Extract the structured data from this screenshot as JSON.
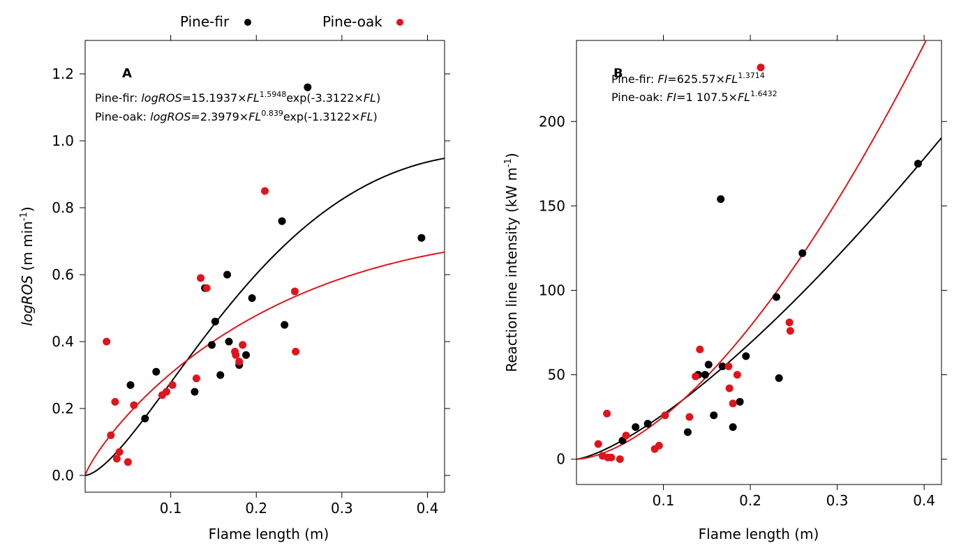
{
  "legend": {
    "items": [
      {
        "label": "Pine-fir",
        "color": "#000000"
      },
      {
        "label": "Pine-oak",
        "color": "#e0141a"
      }
    ]
  },
  "chart_data": [
    {
      "type": "scatter",
      "panel_label": "A",
      "xlabel": "Flame length (m)",
      "ylabel_italic": "logROS",
      "ylabel_rest": " (m min",
      "ylabel_sup": "-1",
      "ylabel_close": ")",
      "xlim": [
        0.0,
        0.42
      ],
      "ylim": [
        -0.05,
        1.3
      ],
      "xticks": [
        0.1,
        0.2,
        0.3,
        0.4
      ],
      "xtick_labels": [
        "0.1",
        "0.2",
        "0.3",
        "0.4"
      ],
      "yticks": [
        0.0,
        0.2,
        0.4,
        0.6,
        0.8,
        1.0,
        1.2
      ],
      "ytick_labels": [
        "0.0",
        "0.2",
        "0.4",
        "0.6",
        "0.8",
        "1.0",
        "1.2"
      ],
      "equations": [
        {
          "prefix": "Pine-fir: ",
          "var": "logROS",
          "mid": "=15.1937×",
          "fl": "FL",
          "sup": "1.5948",
          "rest": "exp(-3.3122×",
          "fl2": "FL",
          "close": ")"
        },
        {
          "prefix": "Pine-oak: ",
          "var": "logROS",
          "mid": "=2.3979×",
          "fl": "FL",
          "sup": "0.839",
          "rest": "exp(-1.3122×",
          "fl2": "FL",
          "close": ")"
        }
      ],
      "series": [
        {
          "name": "Pine-fir",
          "color": "#000000",
          "points": [
            [
              0.053,
              0.27
            ],
            [
              0.07,
              0.17
            ],
            [
              0.083,
              0.31
            ],
            [
              0.128,
              0.25
            ],
            [
              0.14,
              0.56
            ],
            [
              0.148,
              0.39
            ],
            [
              0.152,
              0.46
            ],
            [
              0.158,
              0.3
            ],
            [
              0.166,
              0.6
            ],
            [
              0.168,
              0.4
            ],
            [
              0.18,
              0.33
            ],
            [
              0.188,
              0.36
            ],
            [
              0.195,
              0.53
            ],
            [
              0.23,
              0.76
            ],
            [
              0.233,
              0.45
            ],
            [
              0.26,
              1.16
            ],
            [
              0.393,
              0.71
            ]
          ],
          "fit": {
            "a": 15.1937,
            "b": 1.5948,
            "c": -3.3122,
            "form": "power_exp"
          }
        },
        {
          "name": "Pine-oak",
          "color": "#e0141a",
          "points": [
            [
              0.025,
              0.4
            ],
            [
              0.03,
              0.12
            ],
            [
              0.035,
              0.22
            ],
            [
              0.037,
              0.05
            ],
            [
              0.04,
              0.07
            ],
            [
              0.05,
              0.04
            ],
            [
              0.057,
              0.21
            ],
            [
              0.09,
              0.24
            ],
            [
              0.095,
              0.25
            ],
            [
              0.102,
              0.27
            ],
            [
              0.13,
              0.29
            ],
            [
              0.135,
              0.59
            ],
            [
              0.142,
              0.56
            ],
            [
              0.175,
              0.37
            ],
            [
              0.176,
              0.36
            ],
            [
              0.18,
              0.34
            ],
            [
              0.184,
              0.39
            ],
            [
              0.21,
              0.85
            ],
            [
              0.245,
              0.55
            ],
            [
              0.246,
              0.37
            ]
          ],
          "fit": {
            "a": 2.3979,
            "b": 0.839,
            "c": -1.3122,
            "form": "power_exp"
          }
        }
      ]
    },
    {
      "type": "scatter",
      "panel_label": "B",
      "xlabel": "Flame length (m)",
      "ylabel_italic": "",
      "ylabel_rest": "Reaction line intensity (kW m",
      "ylabel_sup": "-1",
      "ylabel_close": ")",
      "xlim": [
        0.0,
        0.42
      ],
      "ylim": [
        -15,
        248
      ],
      "xticks": [
        0.1,
        0.2,
        0.3,
        0.4
      ],
      "xtick_labels": [
        "0.1",
        "0.2",
        "0.3",
        "0.4"
      ],
      "yticks": [
        0,
        50,
        100,
        150,
        200
      ],
      "ytick_labels": [
        "0",
        "50",
        "100",
        "150",
        "200"
      ],
      "equations": [
        {
          "prefix": "Pine-fir: ",
          "var": "FI",
          "mid": "=625.57×",
          "fl": "FL",
          "sup": "1.3714",
          "rest": "",
          "fl2": "",
          "close": ""
        },
        {
          "prefix": "Pine-oak: ",
          "var": "FI",
          "mid": "=1 107.5×",
          "fl": "FL",
          "sup": "1.6432",
          "rest": "",
          "fl2": "",
          "close": ""
        }
      ],
      "series": [
        {
          "name": "Pine-fir",
          "color": "#000000",
          "points": [
            [
              0.053,
              11
            ],
            [
              0.068,
              19
            ],
            [
              0.082,
              21
            ],
            [
              0.128,
              16
            ],
            [
              0.14,
              50
            ],
            [
              0.148,
              50
            ],
            [
              0.152,
              56
            ],
            [
              0.158,
              26
            ],
            [
              0.166,
              154
            ],
            [
              0.168,
              55
            ],
            [
              0.18,
              19
            ],
            [
              0.188,
              34
            ],
            [
              0.195,
              61
            ],
            [
              0.23,
              96
            ],
            [
              0.233,
              48
            ],
            [
              0.26,
              122
            ],
            [
              0.393,
              175
            ]
          ],
          "fit": {
            "a": 625.57,
            "b": 1.3714,
            "c": 0,
            "form": "power"
          }
        },
        {
          "name": "Pine-oak",
          "color": "#e0141a",
          "points": [
            [
              0.025,
              9
            ],
            [
              0.03,
              2
            ],
            [
              0.035,
              27
            ],
            [
              0.036,
              1
            ],
            [
              0.04,
              1
            ],
            [
              0.05,
              0
            ],
            [
              0.057,
              14
            ],
            [
              0.09,
              6
            ],
            [
              0.095,
              8
            ],
            [
              0.102,
              26
            ],
            [
              0.13,
              25
            ],
            [
              0.137,
              49
            ],
            [
              0.142,
              65
            ],
            [
              0.175,
              55
            ],
            [
              0.176,
              42
            ],
            [
              0.18,
              33
            ],
            [
              0.185,
              50
            ],
            [
              0.212,
              232
            ],
            [
              0.245,
              81
            ],
            [
              0.246,
              76
            ]
          ],
          "fit": {
            "a": 1107.5,
            "b": 1.6432,
            "c": 0,
            "form": "power"
          }
        }
      ]
    }
  ]
}
